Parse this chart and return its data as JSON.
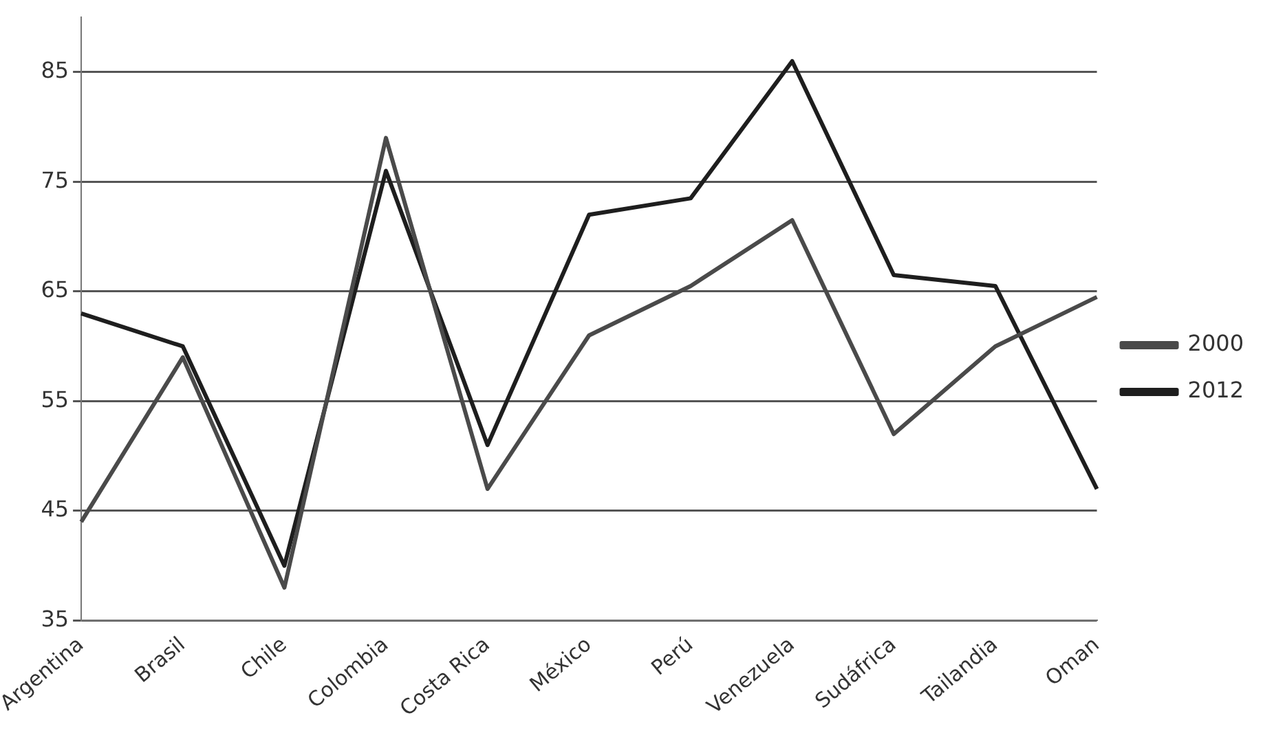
{
  "chart_data": {
    "type": "line",
    "categories": [
      "Argentina",
      "Brasil",
      "Chile",
      "Colombia",
      "Costa Rica",
      "México",
      "Perú",
      "Venezuela",
      "Sudáfrica",
      "Tailandia",
      "Oman"
    ],
    "series": [
      {
        "name": "2000",
        "color": "#4a4a4a",
        "values": [
          44,
          59,
          38,
          79,
          47,
          61,
          65.5,
          71.5,
          52,
          60,
          64.5
        ]
      },
      {
        "name": "2012",
        "color": "#1e1e1e",
        "values": [
          63,
          60,
          40,
          76,
          51,
          72,
          73.5,
          86,
          66.5,
          65.5,
          47
        ]
      }
    ],
    "ylim": [
      35,
      90
    ],
    "yticks": [
      35,
      45,
      55,
      65,
      75,
      85
    ],
    "grid": "y",
    "legend": "right",
    "marker": "none",
    "line_style": "solid"
  }
}
